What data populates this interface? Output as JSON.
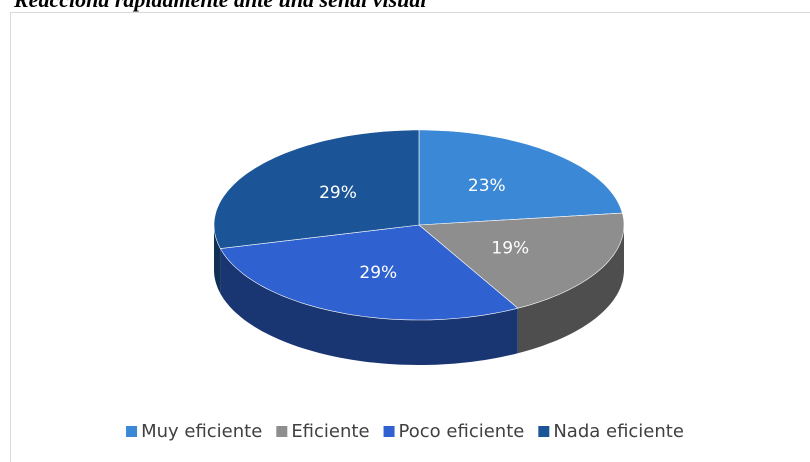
{
  "chart_data": {
    "type": "pie3d",
    "title": "Reacciona rápidamente ante una señal visual",
    "categories": [
      "Muy eficiente",
      "Eficiente",
      "Poco eficiente",
      "Nada eficiente"
    ],
    "values": [
      23,
      19,
      29,
      29
    ],
    "value_labels": [
      "23%",
      "19%",
      "29%",
      "29%"
    ],
    "colors": [
      "#3a88d6",
      "#8e8e8e",
      "#2f62d0",
      "#1b5597"
    ],
    "legend": "bottom"
  }
}
